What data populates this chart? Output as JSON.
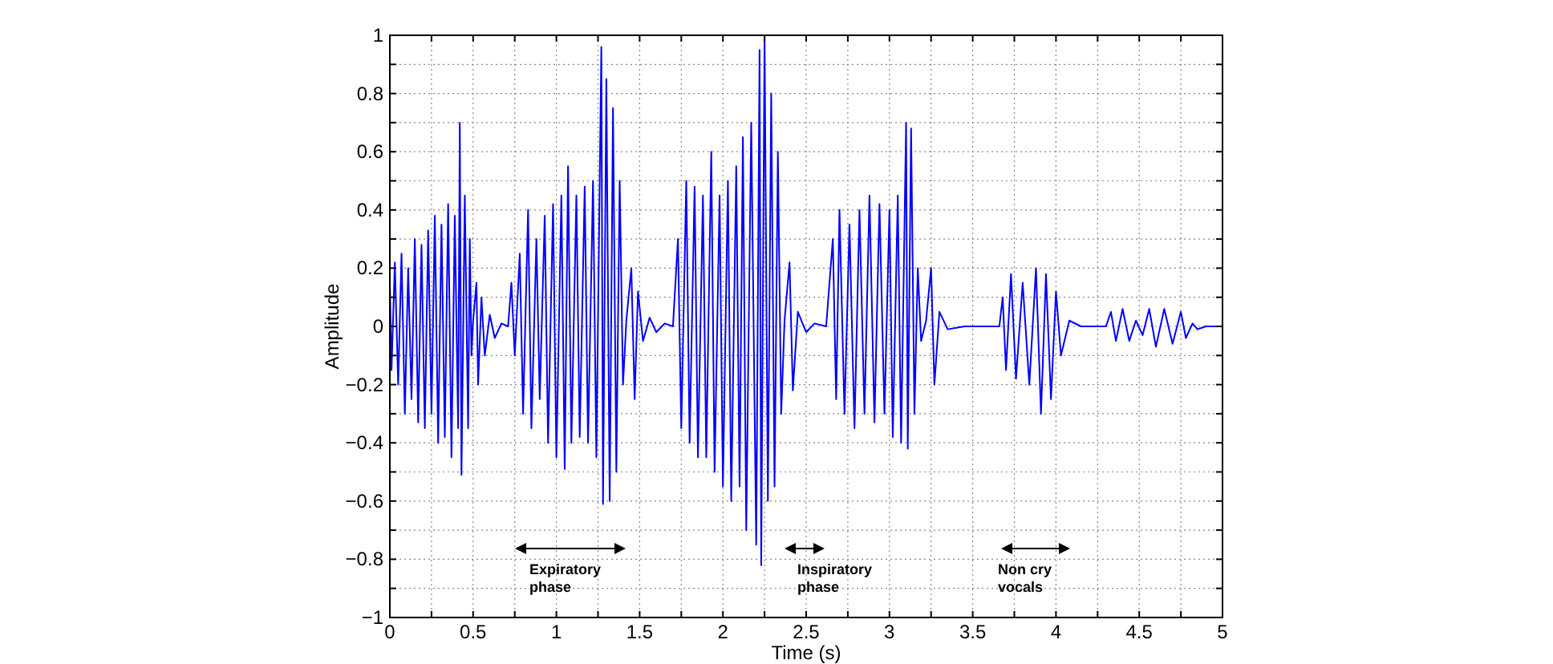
{
  "chart_data": {
    "type": "line",
    "xlabel": "Time (s)",
    "ylabel": "Amplitude",
    "xlim": [
      0,
      5
    ],
    "ylim": [
      -1,
      1
    ],
    "xticks": [
      0,
      {
        "value": 0.25,
        "label": null
      },
      0.5,
      {
        "value": 0.75,
        "label": null
      },
      1,
      {
        "value": 1.25,
        "label": null
      },
      1.5,
      {
        "value": 1.75,
        "label": null
      },
      2,
      {
        "value": 2.25,
        "label": null
      },
      2.5,
      {
        "value": 2.75,
        "label": null
      },
      3,
      {
        "value": 3.25,
        "label": null
      },
      3.5,
      {
        "value": 3.75,
        "label": null
      },
      4,
      {
        "value": 4.25,
        "label": null
      },
      4.5,
      {
        "value": 4.75,
        "label": null
      },
      5
    ],
    "yticks": [
      {
        "value": -1,
        "label": "−1"
      },
      {
        "value": -0.9,
        "label": null
      },
      {
        "value": -0.8,
        "label": "−0.8"
      },
      {
        "value": -0.7,
        "label": null
      },
      {
        "value": -0.6,
        "label": "−0.6"
      },
      {
        "value": -0.5,
        "label": null
      },
      {
        "value": -0.4,
        "label": "−0.4"
      },
      {
        "value": -0.3,
        "label": null
      },
      {
        "value": -0.2,
        "label": "−0.2"
      },
      {
        "value": -0.1,
        "label": null
      },
      0,
      {
        "value": 0.1,
        "label": null
      },
      0.2,
      {
        "value": 0.3,
        "label": null
      },
      0.4,
      {
        "value": 0.5,
        "label": null
      },
      0.6,
      {
        "value": 0.7,
        "label": null
      },
      0.8,
      {
        "value": 0.9,
        "label": null
      },
      1
    ],
    "grid": true,
    "line_style": "solid",
    "marker": "none",
    "annotations": [
      "Expiratory\nphase",
      "Inspiratory\nphase",
      "Non cry\nvocals"
    ],
    "series": [
      {
        "color": "#0000ff",
        "x": [
          0,
          0.01,
          0.03,
          0.05,
          0.07,
          0.09,
          0.11,
          0.13,
          0.15,
          0.17,
          0.19,
          0.21,
          0.23,
          0.25,
          0.27,
          0.29,
          0.31,
          0.33,
          0.35,
          0.37,
          0.39,
          0.41,
          0.42,
          0.43,
          0.45,
          0.47,
          0.48,
          0.49,
          0.5,
          0.52,
          0.53,
          0.55,
          0.57,
          0.6,
          0.63,
          0.67,
          0.71,
          0.73,
          0.75,
          0.78,
          0.8,
          0.83,
          0.85,
          0.88,
          0.9,
          0.93,
          0.95,
          0.98,
          1.0,
          1.03,
          1.05,
          1.07,
          1.09,
          1.12,
          1.14,
          1.17,
          1.19,
          1.22,
          1.24,
          1.27,
          1.28,
          1.3,
          1.32,
          1.34,
          1.36,
          1.38,
          1.4,
          1.42,
          1.45,
          1.47,
          1.49,
          1.52,
          1.56,
          1.6,
          1.65,
          1.7,
          1.73,
          1.75,
          1.78,
          1.8,
          1.83,
          1.85,
          1.88,
          1.9,
          1.93,
          1.95,
          1.98,
          2.0,
          2.03,
          2.05,
          2.08,
          2.1,
          2.12,
          2.14,
          2.17,
          2.2,
          2.22,
          2.23,
          2.25,
          2.27,
          2.29,
          2.31,
          2.33,
          2.35,
          2.37,
          2.4,
          2.42,
          2.45,
          2.5,
          2.55,
          2.62,
          2.66,
          2.68,
          2.7,
          2.73,
          2.76,
          2.79,
          2.82,
          2.85,
          2.88,
          2.91,
          2.94,
          2.97,
          3.0,
          3.02,
          3.05,
          3.07,
          3.1,
          3.11,
          3.13,
          3.15,
          3.17,
          3.19,
          3.22,
          3.25,
          3.27,
          3.3,
          3.35,
          3.45,
          3.66,
          3.68,
          3.7,
          3.73,
          3.76,
          3.8,
          3.84,
          3.88,
          3.91,
          3.94,
          3.97,
          4.0,
          4.03,
          4.08,
          4.15,
          4.3,
          4.33,
          4.36,
          4.4,
          4.44,
          4.48,
          4.52,
          4.56,
          4.6,
          4.65,
          4.7,
          4.75,
          4.78,
          4.82,
          4.85,
          4.9,
          5.0
        ],
        "values": [
          0.15,
          -0.15,
          0.22,
          -0.2,
          0.25,
          -0.3,
          0.2,
          -0.25,
          0.3,
          -0.33,
          0.28,
          -0.35,
          0.33,
          -0.3,
          0.38,
          -0.4,
          0.35,
          -0.38,
          0.42,
          -0.45,
          0.38,
          -0.35,
          0.7,
          -0.51,
          0.45,
          -0.35,
          0.3,
          -0.1,
          0.02,
          0.15,
          -0.2,
          0.1,
          -0.1,
          0.04,
          -0.04,
          0.01,
          0,
          0.15,
          -0.1,
          0.25,
          -0.3,
          0.4,
          -0.35,
          0.3,
          -0.25,
          0.38,
          -0.4,
          0.42,
          -0.45,
          0.45,
          -0.49,
          0.55,
          -0.4,
          0.45,
          -0.38,
          0.48,
          -0.4,
          0.5,
          -0.45,
          0.96,
          -0.61,
          0.85,
          -0.6,
          0.75,
          -0.5,
          0.5,
          -0.2,
          0.02,
          0.2,
          -0.25,
          0.12,
          -0.05,
          0.03,
          -0.02,
          0.01,
          0,
          0.3,
          -0.35,
          0.5,
          -0.4,
          0.48,
          -0.45,
          0.45,
          -0.45,
          0.6,
          -0.5,
          0.45,
          -0.55,
          0.5,
          -0.6,
          0.55,
          -0.55,
          0.65,
          -0.7,
          0.7,
          -0.75,
          0.95,
          -0.82,
          1.0,
          -0.6,
          0.8,
          -0.55,
          0.6,
          -0.3,
          0.02,
          0.22,
          -0.22,
          0.05,
          -0.02,
          0.01,
          0,
          0.3,
          -0.25,
          0.4,
          -0.3,
          0.35,
          -0.35,
          0.4,
          -0.3,
          0.45,
          -0.33,
          0.42,
          -0.3,
          0.4,
          -0.38,
          0.45,
          -0.4,
          0.7,
          -0.42,
          0.68,
          -0.3,
          0.2,
          -0.05,
          0.02,
          0.2,
          -0.2,
          0.05,
          -0.01,
          0,
          0,
          0.1,
          -0.15,
          0.18,
          -0.18,
          0.15,
          -0.2,
          0.2,
          -0.3,
          0.18,
          -0.25,
          0.12,
          -0.1,
          0.02,
          0,
          0,
          0.05,
          -0.05,
          0.06,
          -0.05,
          0.02,
          -0.03,
          0.06,
          -0.07,
          0.06,
          -0.06,
          0.05,
          -0.04,
          0.01,
          -0.01,
          0,
          0
        ]
      }
    ]
  }
}
